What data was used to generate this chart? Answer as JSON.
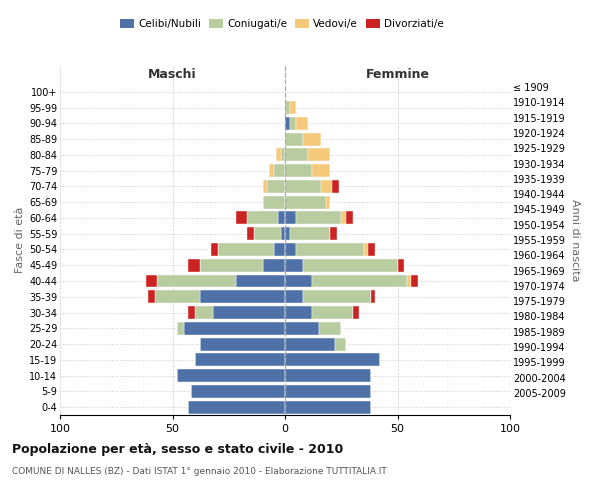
{
  "age_groups": [
    "0-4",
    "5-9",
    "10-14",
    "15-19",
    "20-24",
    "25-29",
    "30-34",
    "35-39",
    "40-44",
    "45-49",
    "50-54",
    "55-59",
    "60-64",
    "65-69",
    "70-74",
    "75-79",
    "80-84",
    "85-89",
    "90-94",
    "95-99",
    "100+"
  ],
  "birth_years": [
    "2005-2009",
    "2000-2004",
    "1995-1999",
    "1990-1994",
    "1985-1989",
    "1980-1984",
    "1975-1979",
    "1970-1974",
    "1965-1969",
    "1960-1964",
    "1955-1959",
    "1950-1954",
    "1945-1949",
    "1940-1944",
    "1935-1939",
    "1930-1934",
    "1925-1929",
    "1920-1924",
    "1915-1919",
    "1910-1914",
    "≤ 1909"
  ],
  "maschi": {
    "celibi": [
      43,
      42,
      48,
      40,
      38,
      45,
      32,
      38,
      22,
      10,
      5,
      2,
      3,
      0,
      0,
      0,
      0,
      0,
      0,
      0,
      0
    ],
    "coniugati": [
      0,
      0,
      0,
      0,
      0,
      3,
      8,
      20,
      35,
      28,
      25,
      12,
      14,
      10,
      8,
      5,
      2,
      0,
      0,
      0,
      0
    ],
    "vedovi": [
      0,
      0,
      0,
      0,
      0,
      0,
      0,
      0,
      0,
      0,
      0,
      0,
      0,
      0,
      2,
      2,
      2,
      0,
      0,
      0,
      0
    ],
    "divorziati": [
      0,
      0,
      0,
      0,
      0,
      0,
      3,
      3,
      5,
      5,
      3,
      3,
      5,
      0,
      0,
      0,
      0,
      0,
      0,
      0,
      0
    ]
  },
  "femmine": {
    "nubili": [
      38,
      38,
      38,
      42,
      22,
      15,
      12,
      8,
      12,
      8,
      5,
      2,
      5,
      0,
      0,
      0,
      0,
      0,
      2,
      0,
      0
    ],
    "coniugate": [
      0,
      0,
      0,
      0,
      5,
      10,
      18,
      30,
      42,
      42,
      30,
      18,
      20,
      18,
      16,
      12,
      10,
      8,
      3,
      2,
      0
    ],
    "vedove": [
      0,
      0,
      0,
      0,
      0,
      0,
      0,
      0,
      2,
      0,
      2,
      0,
      2,
      2,
      5,
      8,
      10,
      8,
      5,
      3,
      0
    ],
    "divorziate": [
      0,
      0,
      0,
      0,
      0,
      0,
      3,
      2,
      3,
      3,
      3,
      3,
      3,
      0,
      3,
      0,
      0,
      0,
      0,
      0,
      0
    ]
  },
  "colors": {
    "celibi": "#4e72a8",
    "coniugati": "#b8cca0",
    "vedovi": "#f5c97a",
    "divorziati": "#cc2222"
  },
  "xlim": 100,
  "title": "Popolazione per età, sesso e stato civile - 2010",
  "subtitle": "COMUNE DI NALLES (BZ) - Dati ISTAT 1° gennaio 2010 - Elaborazione TUTTITALIA.IT",
  "ylabel_left": "Fasce di età",
  "ylabel_right": "Anni di nascita",
  "xlabel_left": "Maschi",
  "xlabel_right": "Femmine"
}
